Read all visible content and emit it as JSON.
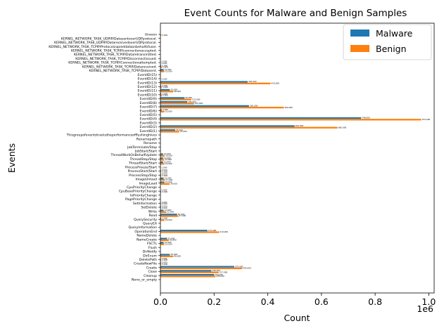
{
  "chart_data": {
    "type": "bar",
    "orientation": "horizontal",
    "title": "Event Counts for Malware and Benign Samples",
    "xlabel": "Count",
    "ylabel": "Events",
    "x_multiplier_label": "1e6",
    "xlim": [
      0,
      1.02
    ],
    "xticks": [
      "0.0",
      "0.2",
      "0.4",
      "0.6",
      "0.8",
      "1.0"
    ],
    "xtick_values": [
      0,
      0.2,
      0.4,
      0.6,
      0.8,
      1.0
    ],
    "legend": "top-right",
    "grid": false,
    "categories": [
      "None_or_empty",
      "Cleanup",
      "Close",
      "Create",
      "CreateNewFile",
      "DeletePath",
      "DirEnum",
      "DirNotify",
      "Flush",
      "FSCTL",
      "NameCreate",
      "NameDelete",
      "OperationEnd",
      "QueryInformation",
      "QueryEA",
      "QuerySecurity",
      "Read",
      "Write",
      "SetDelete",
      "SetInformation",
      "PagePriorityChange",
      "IoPriorityChange",
      "CpuBasePriorityChange",
      "CpuPriorityChange",
      "ImageLoad",
      "ImageUnload",
      "ProcessStop/Stop",
      "ProcessStart/Start",
      "ProcessFreeze/Start",
      "ThreadStart/Start",
      "ThreadStop/Stop",
      "ThreadWorkOnBehalfUpdate",
      "JobStart/Start",
      "JobTerminate/Stop",
      "Rename",
      "Renamepath",
      "Thisgroupofeventstrackstheperformanceofflushinghives",
      "EventID(1)",
      "EventID(2)",
      "EventID(3)",
      "EventID(4)",
      "EventID(5)",
      "EventID(6)",
      "EventID(7)",
      "EventID(8)",
      "EventID(9)",
      "EventID(10)",
      "EventID(11)",
      "EventID(12)",
      "EventID(13)",
      "EventID(14)",
      "EventID(15)",
      "KERNEL_NETWORK_TASK_TCPIP/Datasent.",
      "KERNEL_NETWORK_TASK_TCPIP/Datareceived.",
      "KERNEL_NETWORK_TASK_TCPIP/Connectionattempted.",
      "KERNEL_NETWORK_TASK_TCPIP/Disconnectissued.",
      "KERNEL_NETWORK_TASK_TCPIP/Dataretransmitted.",
      "KERNEL_NETWORK_TASK_TCPIP/connectionaccepted.",
      "KERNEL_NETWORK_TASK_TCPIP/Protocolcopieddataonbehalfofuser.",
      "KERNEL_NETWORK_TASK_UDPIP/DatareceivedoverUDPprotocol.",
      "KERNEL_NETWORK_TASK_UDPIP/DatasentoverUDPprotocol.",
      "Unseen"
    ],
    "series": [
      {
        "name": "Malware",
        "color": "#1f77b4",
        "values": [
          0,
          0.2,
          0.19,
          0.275,
          0.002,
          0.001,
          0.035,
          0,
          0,
          0.012,
          0.025,
          0,
          0.175,
          0,
          0,
          0.003,
          0.062,
          0.012,
          0.002,
          0.001,
          0,
          0,
          0.001,
          0,
          0.015,
          0.012,
          0.002,
          0.002,
          0,
          0.01,
          0.01,
          0.01,
          0,
          0,
          0,
          0,
          0,
          0.055,
          0.5,
          0,
          0.748,
          0,
          0.005,
          0.33,
          0.1,
          0.09,
          0.003,
          0.035,
          0.003,
          0.325,
          0,
          0,
          0.012,
          0.003,
          0.001,
          0,
          0,
          0,
          0,
          0,
          0,
          0
        ]
      },
      {
        "name": "Benign",
        "color": "#ff7f0e",
        "values": [
          0,
          0.205,
          0.217,
          0.305,
          0.003,
          0.003,
          0.048,
          0,
          0,
          0.015,
          0.031,
          0,
          0.219,
          0,
          0,
          0.015,
          0.067,
          0.022,
          0.002,
          0.002,
          0,
          0,
          0.003,
          0,
          0.034,
          0.017,
          0.003,
          0.003,
          0.001,
          0.015,
          0.014,
          0.016,
          0,
          0,
          0,
          0,
          0,
          0.07,
          0.66,
          0,
          0.972,
          0,
          0.015,
          0.46,
          0.125,
          0.115,
          0.005,
          0.048,
          0.005,
          0.41,
          0.001,
          0,
          0.015,
          0.005,
          0.001,
          0,
          0,
          0,
          0,
          0,
          0,
          0.003
        ]
      }
    ]
  }
}
